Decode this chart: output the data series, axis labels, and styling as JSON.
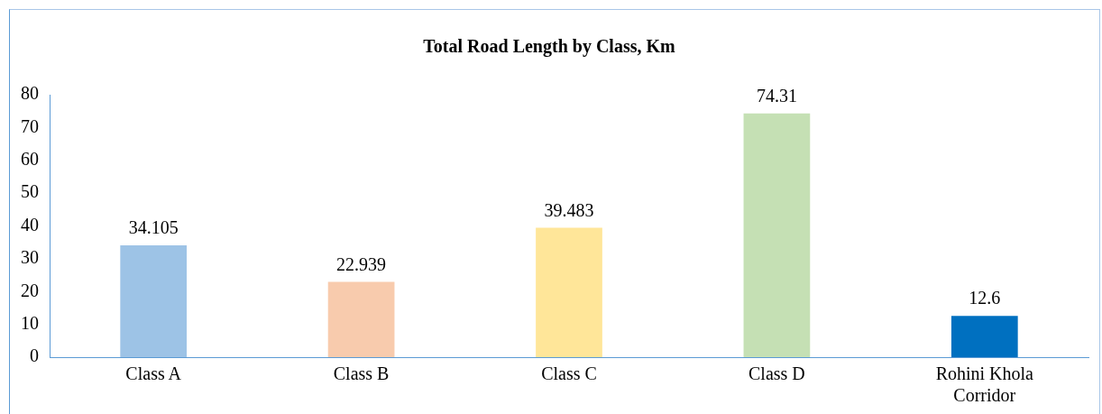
{
  "chart_data": {
    "type": "bar",
    "title": "Total Road Length by Class, Km",
    "categories": [
      "Class A",
      "Class B",
      "Class C",
      "Class D",
      "Rohini Khola Corridor"
    ],
    "values": [
      34.105,
      22.939,
      39.483,
      74.31,
      12.6
    ],
    "colors": [
      "#9dc3e6",
      "#f8cbad",
      "#ffe699",
      "#c5e0b4",
      "#0070c0"
    ],
    "ylim": [
      0,
      80
    ],
    "yticks": [
      0,
      10,
      20,
      30,
      40,
      50,
      60,
      70,
      80
    ],
    "grid": false,
    "legend": false,
    "data_labels": true
  }
}
